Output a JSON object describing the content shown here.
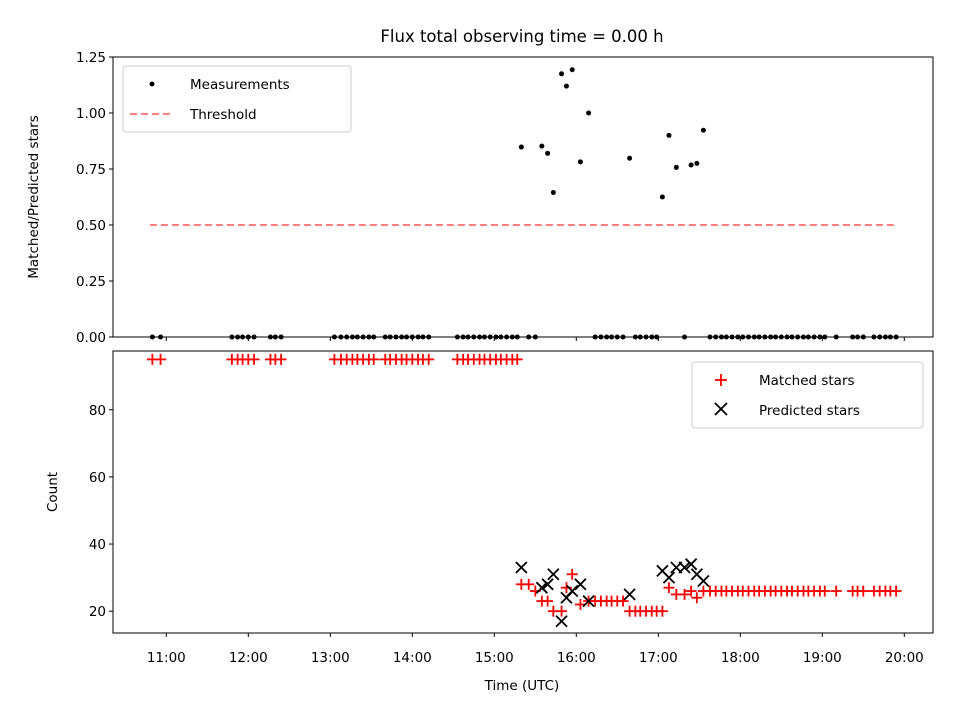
{
  "chart_data": [
    {
      "type": "scatter",
      "title": "Flux total observing time = 0.00 h",
      "xlabel": "",
      "ylabel": "Matched/Predicted stars",
      "xlim": [
        10.35,
        20.35
      ],
      "ylim": [
        0,
        1.25
      ],
      "yticks": [
        0.0,
        0.25,
        0.5,
        0.75,
        1.0,
        1.25
      ],
      "ytick_labels": [
        "0.00",
        "0.25",
        "0.50",
        "0.75",
        "1.00",
        "1.25"
      ],
      "grid": false,
      "legend_position": "top-left",
      "series": [
        {
          "name": "Measurements",
          "kind": "scatter",
          "color": "#000000",
          "x": [
            10.83,
            10.93,
            11.8,
            11.87,
            11.93,
            12.0,
            12.07,
            12.27,
            12.33,
            12.4,
            13.05,
            13.13,
            13.2,
            13.27,
            13.33,
            13.4,
            13.47,
            13.53,
            13.67,
            13.73,
            13.8,
            13.87,
            13.93,
            14.0,
            14.07,
            14.13,
            14.2,
            14.55,
            14.62,
            14.68,
            14.75,
            14.82,
            14.88,
            14.95,
            15.02,
            15.08,
            15.15,
            15.22,
            15.28,
            15.33,
            15.42,
            15.5,
            15.58,
            15.65,
            15.72,
            15.82,
            15.88,
            15.95,
            16.05,
            16.15,
            16.23,
            16.3,
            16.37,
            16.43,
            16.5,
            16.57,
            16.65,
            16.72,
            16.78,
            16.85,
            16.92,
            16.98,
            17.05,
            17.13,
            17.22,
            17.32,
            17.4,
            17.47,
            17.55,
            17.63,
            17.7,
            17.77,
            17.83,
            17.9,
            17.97,
            18.03,
            18.1,
            18.17,
            18.23,
            18.3,
            18.37,
            18.43,
            18.5,
            18.57,
            18.63,
            18.7,
            18.77,
            18.83,
            18.9,
            18.97,
            19.03,
            19.17,
            19.37,
            19.43,
            19.5,
            19.63,
            19.7,
            19.77,
            19.83,
            19.9
          ],
          "y": [
            0,
            0,
            0,
            0,
            0,
            0,
            0,
            0,
            0,
            0,
            0,
            0,
            0,
            0,
            0,
            0,
            0,
            0,
            0,
            0,
            0,
            0,
            0,
            0,
            0,
            0,
            0,
            0,
            0,
            0,
            0,
            0,
            0,
            0,
            0,
            0,
            0,
            0,
            0,
            0.848,
            0,
            0,
            0.852,
            0.82,
            0.645,
            1.175,
            1.12,
            1.193,
            0.782,
            1.0,
            0,
            0,
            0,
            0,
            0,
            0,
            0.798,
            0,
            0,
            0,
            0,
            0,
            0.625,
            0.9,
            0.757,
            0,
            0.768,
            0.775,
            0.923,
            0,
            0,
            0,
            0,
            0,
            0,
            0,
            0,
            0,
            0,
            0,
            0,
            0,
            0,
            0,
            0,
            0,
            0,
            0,
            0,
            0,
            0,
            0,
            0,
            0,
            0,
            0,
            0,
            0,
            0,
            0
          ]
        },
        {
          "name": "Threshold",
          "kind": "line",
          "style": "dashed",
          "color": "#ff7f7f",
          "x": [
            10.8,
            19.92
          ],
          "y": [
            0.5,
            0.5
          ]
        }
      ]
    },
    {
      "type": "scatter",
      "title": "",
      "xlabel": "Time (UTC)",
      "ylabel": "Count",
      "xlim": [
        10.35,
        20.35
      ],
      "ylim": [
        13.5,
        97.5
      ],
      "xticks": [
        11,
        12,
        13,
        14,
        15,
        16,
        17,
        18,
        19,
        20
      ],
      "xtick_labels": [
        "11:00",
        "12:00",
        "13:00",
        "14:00",
        "15:00",
        "16:00",
        "17:00",
        "18:00",
        "19:00",
        "20:00"
      ],
      "yticks": [
        20,
        40,
        60,
        80
      ],
      "ytick_labels": [
        "20",
        "40",
        "60",
        "80"
      ],
      "grid": false,
      "legend_position": "top-right",
      "series": [
        {
          "name": "Matched stars",
          "marker": "plus",
          "color": "#ff0000",
          "x": [
            10.83,
            10.93,
            11.8,
            11.87,
            11.93,
            12.0,
            12.07,
            12.27,
            12.33,
            12.4,
            13.05,
            13.13,
            13.2,
            13.27,
            13.33,
            13.4,
            13.47,
            13.53,
            13.67,
            13.73,
            13.8,
            13.87,
            13.93,
            14.0,
            14.07,
            14.13,
            14.2,
            14.55,
            14.62,
            14.68,
            14.75,
            14.82,
            14.88,
            14.95,
            15.02,
            15.08,
            15.15,
            15.22,
            15.28,
            15.33,
            15.42,
            15.5,
            15.58,
            15.65,
            15.72,
            15.82,
            15.88,
            15.95,
            16.05,
            16.15,
            16.23,
            16.3,
            16.37,
            16.43,
            16.5,
            16.57,
            16.65,
            16.72,
            16.78,
            16.85,
            16.92,
            16.98,
            17.05,
            17.13,
            17.22,
            17.32,
            17.4,
            17.47,
            17.55,
            17.63,
            17.7,
            17.77,
            17.83,
            17.9,
            17.97,
            18.03,
            18.1,
            18.17,
            18.23,
            18.3,
            18.37,
            18.43,
            18.5,
            18.57,
            18.63,
            18.7,
            18.77,
            18.83,
            18.9,
            18.97,
            19.03,
            19.17,
            19.37,
            19.43,
            19.5,
            19.63,
            19.7,
            19.77,
            19.83,
            19.9
          ],
          "y": [
            95,
            95,
            95,
            95,
            95,
            95,
            95,
            95,
            95,
            95,
            95,
            95,
            95,
            95,
            95,
            95,
            95,
            95,
            95,
            95,
            95,
            95,
            95,
            95,
            95,
            95,
            95,
            95,
            95,
            95,
            95,
            95,
            95,
            95,
            95,
            95,
            95,
            95,
            95,
            28,
            28,
            26,
            23,
            23,
            20,
            20,
            27,
            31,
            22,
            23,
            23,
            23,
            23,
            23,
            23,
            23,
            20,
            20,
            20,
            20,
            20,
            20,
            20,
            27,
            25,
            25,
            26,
            24,
            26,
            26,
            26,
            26,
            26,
            26,
            26,
            26,
            26,
            26,
            26,
            26,
            26,
            26,
            26,
            26,
            26,
            26,
            26,
            26,
            26,
            26,
            26,
            26,
            26,
            26,
            26,
            26,
            26,
            26,
            26,
            26
          ]
        },
        {
          "name": "Predicted stars",
          "marker": "x",
          "color": "#000000",
          "x": [
            15.33,
            15.58,
            15.65,
            15.72,
            15.82,
            15.88,
            15.95,
            16.05,
            16.15,
            16.65,
            17.05,
            17.13,
            17.22,
            17.32,
            17.4,
            17.47,
            17.55
          ],
          "y": [
            33,
            27,
            28,
            31,
            17,
            24,
            26,
            28,
            23,
            25,
            32,
            30,
            33,
            33,
            34,
            31,
            29
          ]
        }
      ]
    }
  ]
}
